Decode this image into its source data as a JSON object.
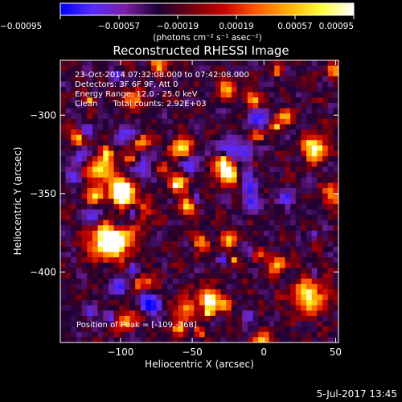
{
  "chart_data": {
    "type": "heatmap",
    "title": "Reconstructed RHESSI Image",
    "xlabel": "Heliocentric X (arcsec)",
    "ylabel": "Heliocentric Y (arcsec)",
    "xlim": [
      -142,
      52
    ],
    "ylim": [
      -445,
      -265
    ],
    "x_ticks": [
      -100,
      -50,
      0,
      50
    ],
    "y_ticks": [
      -400,
      -350,
      -300
    ],
    "x_tick_labels": [
      "−100",
      "−50",
      "0",
      "50"
    ],
    "y_tick_labels": [
      "−400",
      "−350",
      "−300"
    ],
    "colorbar": {
      "range": [
        -0.00095,
        0.00095
      ],
      "ticks": [
        -0.00095,
        -0.00057,
        -0.00019,
        0.00019,
        0.00057,
        0.00095
      ],
      "tick_labels": [
        "−0.00095",
        "−0.00057",
        "−0.00019",
        "0.00019",
        "0.00057",
        "0.00095"
      ],
      "unit_label": "(photons cm⁻² s⁻¹ asec⁻²)",
      "colors": [
        "#0000ff",
        "#5a2cff",
        "#7a1fa0",
        "#1a0033",
        "#6e0010",
        "#c40000",
        "#ff5a00",
        "#ffb000",
        "#ffff40",
        "#ffffff"
      ]
    },
    "annotations": [
      "23-Oct-2014 07:32:08.000 to 07:42:08.000",
      "Detectors: 3F 6F 9F, Att 0",
      "Energy Range: 12.0 - 25.0 keV",
      "Clean      Total counts: 2.92E+03",
      "Position of Peak = [-109,-368]"
    ],
    "peak": {
      "x": -109,
      "y": -368
    },
    "grid": false,
    "footer": "5-Jul-2017 13:45"
  }
}
